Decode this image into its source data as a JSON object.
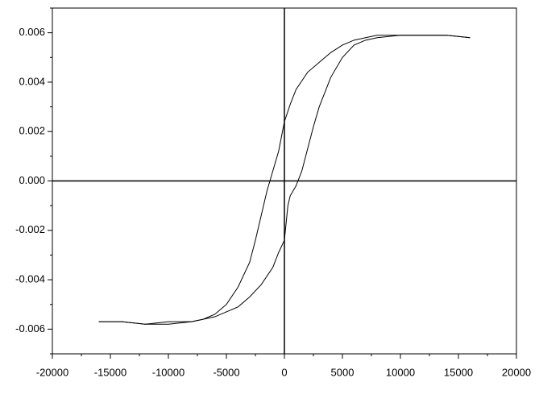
{
  "chart_data": {
    "type": "line",
    "xlim": [
      -20000,
      20000
    ],
    "xticks": [
      -20000,
      -15000,
      -10000,
      -5000,
      0,
      5000,
      10000,
      15000,
      20000
    ],
    "xminorticks": [
      -17500,
      -12500,
      -7500,
      -2500,
      2500,
      7500,
      12500,
      17500
    ],
    "ylim": [
      -0.007,
      0.007
    ],
    "yticks": [
      -0.006,
      -0.004,
      -0.002,
      {
        "value": 0,
        "label": "0.000"
      },
      0.002,
      0.004,
      0.006
    ],
    "yminorticks": [
      -0.007,
      -0.005,
      -0.003,
      -0.001,
      0.001,
      0.003,
      0.005,
      0.007
    ],
    "zero_lines": true,
    "series": [
      {
        "color": "#000000",
        "x": [
          16000,
          14000,
          12000,
          10000,
          8000,
          7000,
          6000,
          5000,
          4000,
          3000,
          2000,
          1000,
          500,
          0,
          -500,
          -1000,
          -1500,
          -2000,
          -2500,
          -3000,
          -4000,
          -5000,
          -6000,
          -7000,
          -8000,
          -10000,
          -12000,
          -14000,
          -16000
        ],
        "values": [
          0.0058,
          0.0059,
          0.0059,
          0.0059,
          0.0059,
          0.0058,
          0.0057,
          0.0055,
          0.0052,
          0.0048,
          0.0044,
          0.0037,
          0.0031,
          0.0024,
          0.0012,
          0.0004,
          -0.0004,
          -0.0014,
          -0.0024,
          -0.0033,
          -0.0043,
          -0.005,
          -0.0054,
          -0.0056,
          -0.0057,
          -0.0057,
          -0.0058,
          -0.0057,
          -0.0057
        ]
      },
      {
        "color": "#000000",
        "x": [
          -16000,
          -14000,
          -12000,
          -10000,
          -8000,
          -7000,
          -6000,
          -5000,
          -4000,
          -3000,
          -2000,
          -1000,
          -500,
          0,
          300,
          500,
          1000,
          1500,
          2000,
          2500,
          3000,
          4000,
          5000,
          6000,
          7000,
          8000,
          10000,
          12000,
          14000,
          16000
        ],
        "values": [
          -0.0057,
          -0.0057,
          -0.0058,
          -0.0058,
          -0.0057,
          -0.0056,
          -0.0055,
          -0.0053,
          -0.0051,
          -0.0047,
          -0.0042,
          -0.0035,
          -0.0029,
          -0.0024,
          -0.001,
          -0.0006,
          -0.0002,
          0.0004,
          0.0013,
          0.0022,
          0.003,
          0.0042,
          0.005,
          0.0055,
          0.0057,
          0.0058,
          0.0059,
          0.0059,
          0.0059,
          0.0058
        ]
      }
    ]
  }
}
